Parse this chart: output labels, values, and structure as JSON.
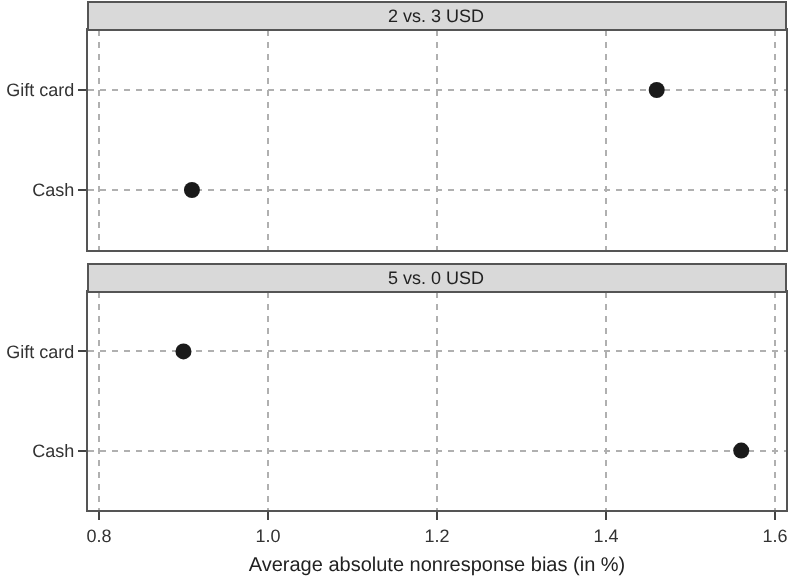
{
  "chart_data": [
    {
      "type": "scatter",
      "orientation": "horizontal",
      "title": "2 vs. 3 USD",
      "categories": [
        "Gift card",
        "Cash"
      ],
      "values": [
        1.46,
        0.91
      ],
      "color": "#1a1a1a",
      "marker": "circle",
      "xlim": [
        0.787,
        1.613
      ],
      "xticks": [
        {
          "value": 0.8,
          "label": null
        },
        {
          "value": 1.0,
          "label": null
        },
        {
          "value": 1.2,
          "label": null
        },
        {
          "value": 1.4,
          "label": null
        },
        {
          "value": 1.6,
          "label": null
        }
      ],
      "grid": true,
      "tick_labels": "y"
    },
    {
      "type": "scatter",
      "orientation": "horizontal",
      "title": "5 vs. 0 USD",
      "xlabel": "Average absolute nonresponse bias (in %)",
      "categories": [
        "Gift card",
        "Cash"
      ],
      "values": [
        0.9,
        1.56
      ],
      "color": "#1a1a1a",
      "marker": "circle",
      "xlim": [
        0.787,
        1.613
      ],
      "xticks": [
        {
          "value": 0.8,
          "label": "0.8"
        },
        {
          "value": 1.0,
          "label": "1.0"
        },
        {
          "value": 1.2,
          "label": "1.2"
        },
        {
          "value": 1.4,
          "label": "1.4"
        },
        {
          "value": 1.6,
          "label": "1.6"
        }
      ],
      "grid": true
    }
  ]
}
